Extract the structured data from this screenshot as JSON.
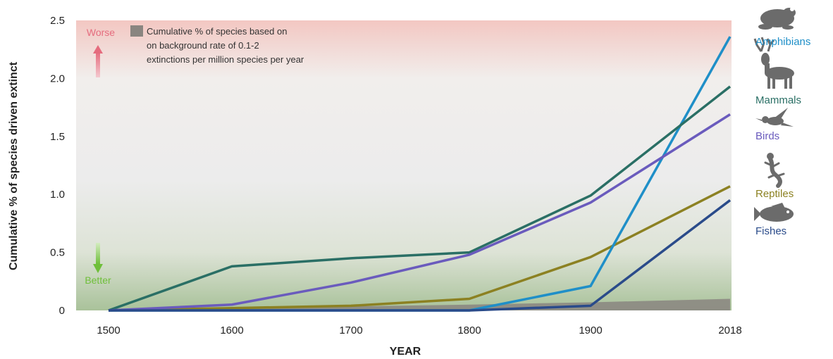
{
  "chart_data": {
    "type": "line",
    "xlabel": "YEAR",
    "ylabel": "Cumulative % of species driven extinct",
    "ylim": [
      0,
      2.5
    ],
    "x_ticks": [
      "1500",
      "1600",
      "1700",
      "1800",
      "1900",
      "2018"
    ],
    "y_ticks": [
      "0",
      "0.5",
      "1.0",
      "1.5",
      "2.0",
      "2.5"
    ],
    "x": [
      1500,
      1600,
      1700,
      1800,
      1900,
      2018
    ],
    "worse_label": "Worse",
    "better_label": "Better",
    "background_band": {
      "label_lines": [
        "Cumulative % of species based on",
        "on background rate of 0.1-2",
        "extinctions per million species per year"
      ],
      "color": "#8a8580",
      "values": [
        0,
        0.02,
        0.035,
        0.05,
        0.07,
        0.1
      ]
    },
    "series": [
      {
        "name": "Amphibians",
        "color": "#1f8fc8",
        "icon": "frog-icon",
        "values": [
          0,
          0,
          0,
          0,
          0.21,
          2.36
        ]
      },
      {
        "name": "Mammals",
        "color": "#2a6f65",
        "icon": "deer-icon",
        "values": [
          0,
          0.38,
          0.45,
          0.5,
          0.99,
          1.93
        ]
      },
      {
        "name": "Birds",
        "color": "#6a5bbd",
        "icon": "bird-icon",
        "values": [
          0,
          0.05,
          0.24,
          0.48,
          0.93,
          1.69
        ]
      },
      {
        "name": "Reptiles",
        "color": "#8c8122",
        "icon": "lizard-icon",
        "values": [
          0,
          0.02,
          0.04,
          0.1,
          0.46,
          1.07
        ]
      },
      {
        "name": "Fishes",
        "color": "#2a4b8a",
        "icon": "fish-icon",
        "values": [
          0,
          0,
          0,
          0,
          0.04,
          0.95
        ]
      }
    ]
  }
}
